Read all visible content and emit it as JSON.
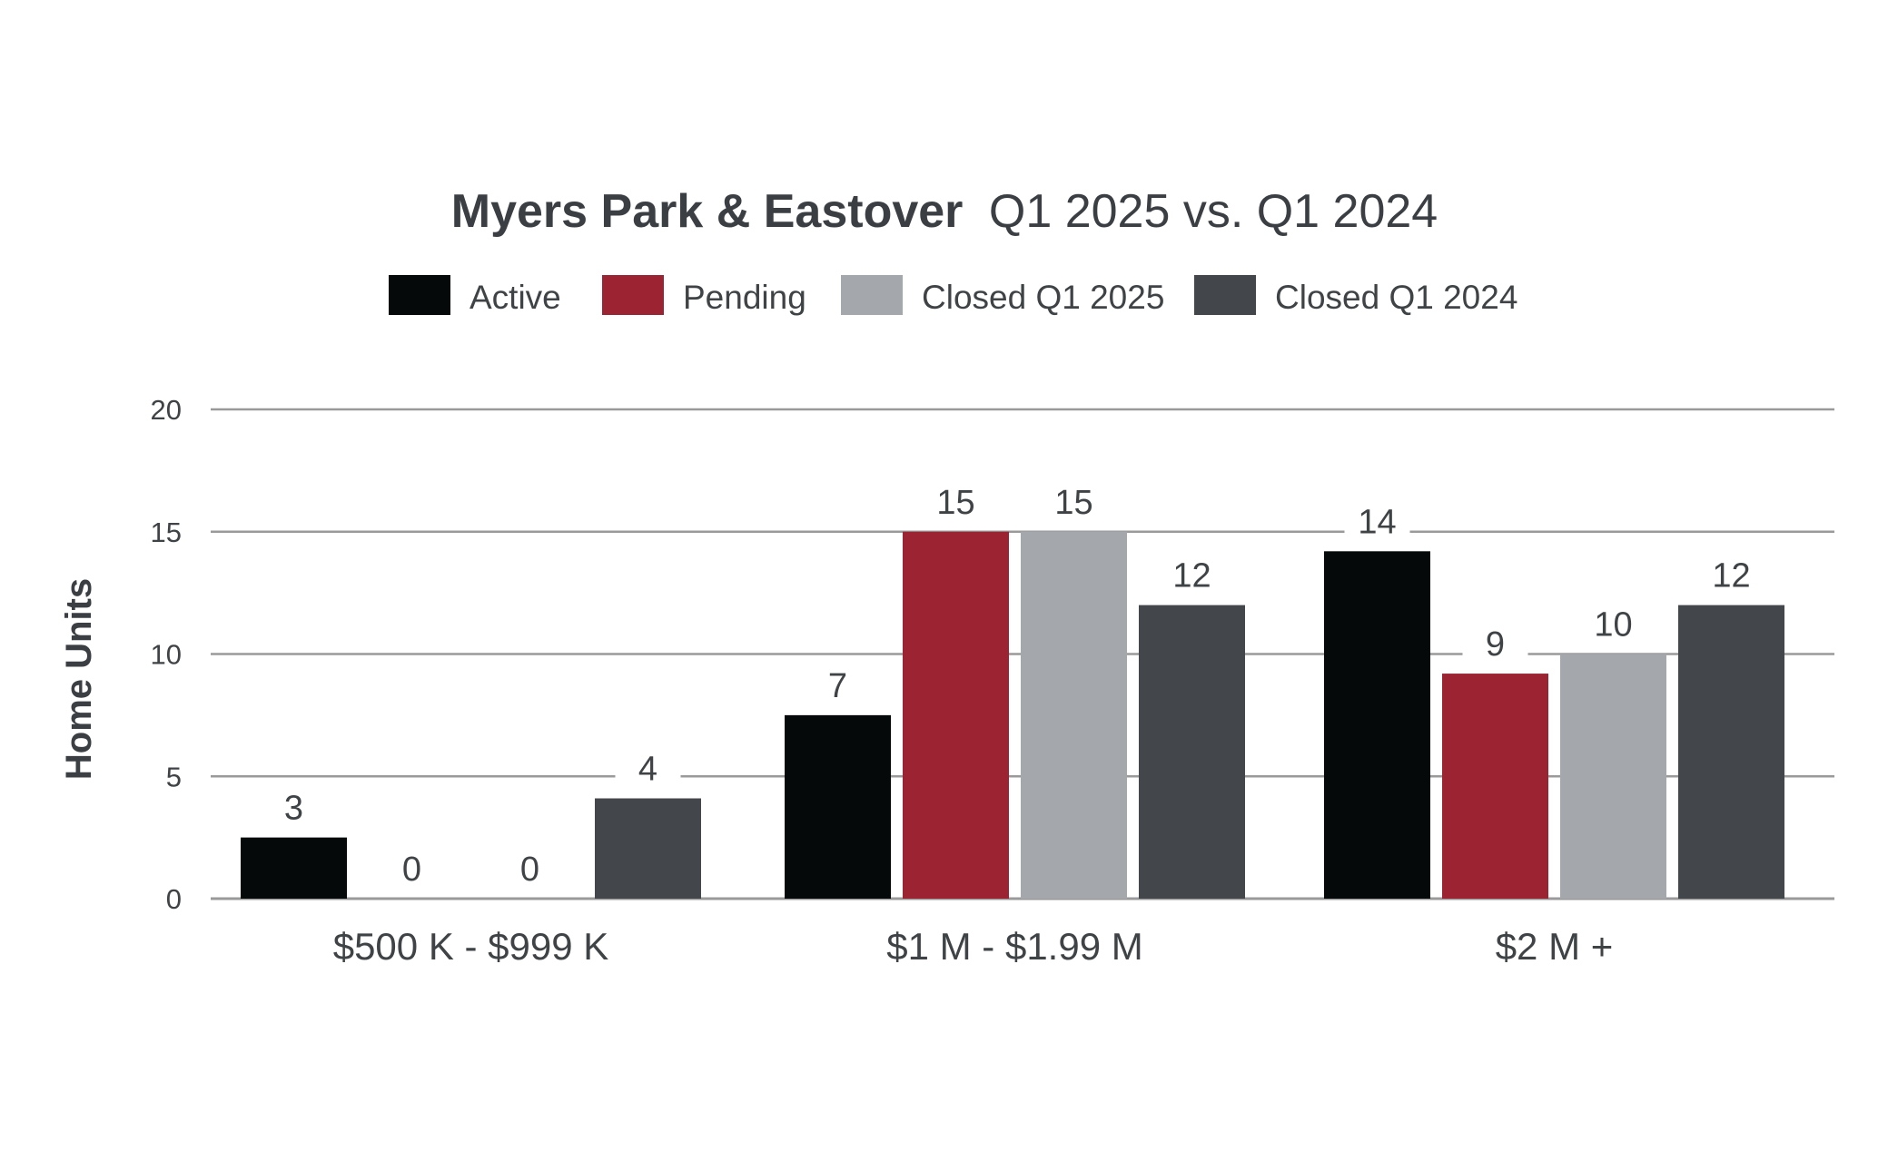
{
  "chart_data": {
    "type": "bar",
    "title_bold": "Myers Park & Eastover",
    "title_rest": "Q1 2025 vs. Q1 2024",
    "ylabel": "Home Units",
    "xlabel": "",
    "ylim": [
      0,
      20
    ],
    "yticks": [
      0,
      5,
      10,
      15,
      20
    ],
    "grid": true,
    "legend_position": "top-center",
    "categories": [
      "$500 K - $999 K",
      "$1 M - $1.99 M",
      "$2 M +"
    ],
    "series": [
      {
        "name": "Active",
        "color": "#050909",
        "values": [
          2.5,
          7.5,
          14.2
        ],
        "labels": [
          "3",
          "7",
          "14"
        ]
      },
      {
        "name": "Pending",
        "color": "#9b2332",
        "values": [
          0,
          15,
          9.2
        ],
        "labels": [
          "0",
          "15",
          "9"
        ]
      },
      {
        "name": "Closed Q1 2025",
        "color": "#a4a8ad",
        "values": [
          0,
          15,
          10
        ],
        "labels": [
          "0",
          "15",
          "10"
        ]
      },
      {
        "name": "Closed Q1 2024",
        "color": "#43474b",
        "values": [
          4.1,
          12,
          12
        ],
        "labels": [
          "4",
          "12",
          "12"
        ]
      }
    ],
    "colors": {
      "grid": "#9a9a9a",
      "axis_text": "#3f4346",
      "title": "#3b3f43",
      "label_bg": "#ffffff"
    }
  }
}
